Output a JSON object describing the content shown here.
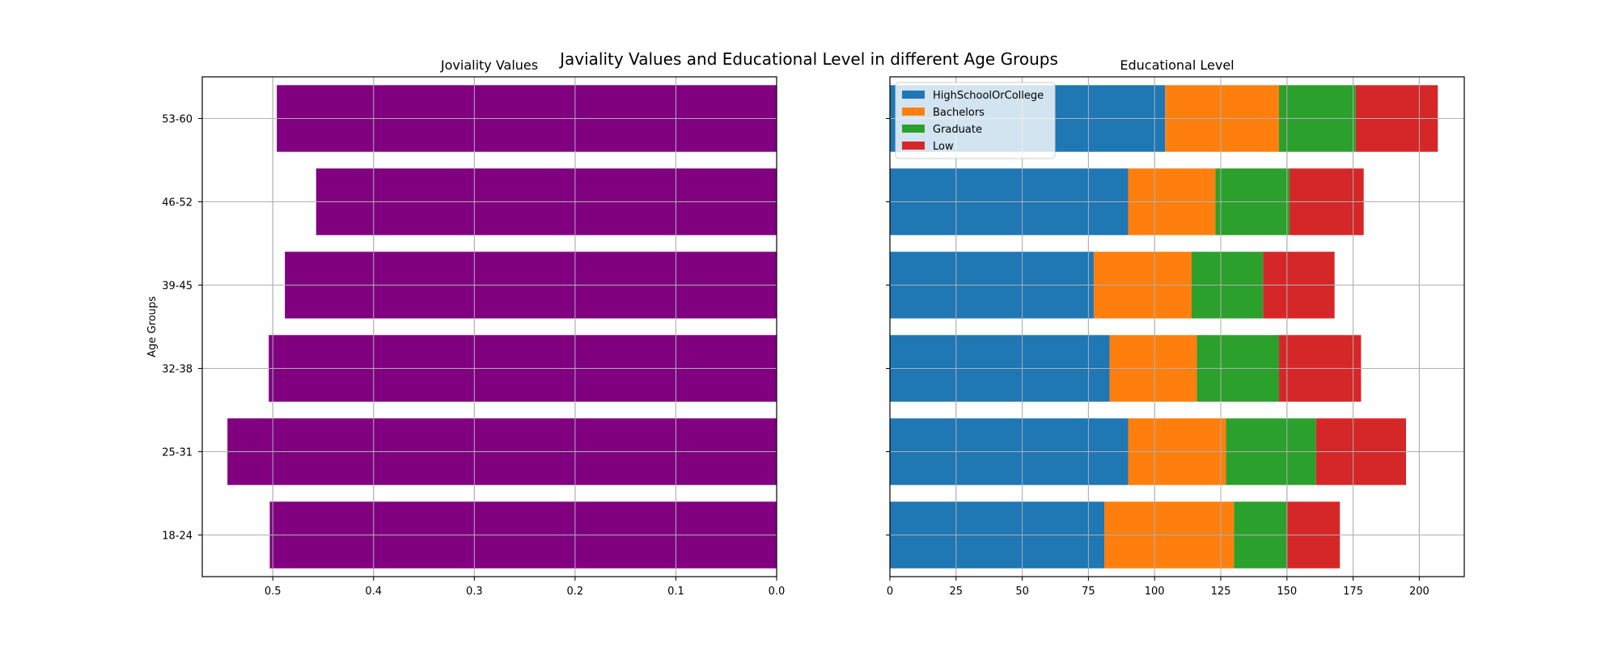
{
  "figure": {
    "title": "Javiality Values and Educational Level in different Age Groups"
  },
  "chart_data": [
    {
      "type": "bar",
      "orientation": "horizontal",
      "title": "Joviality Values",
      "xlabel": "",
      "ylabel": "Age Groups",
      "categories": [
        "18-24",
        "25-31",
        "32-38",
        "39-45",
        "46-52",
        "53-60"
      ],
      "values": [
        0.503,
        0.545,
        0.504,
        0.488,
        0.457,
        0.496
      ],
      "xlim": [
        0.57,
        0.0
      ],
      "x_inverted": true,
      "xticks": [
        "0.5",
        "0.4",
        "0.3",
        "0.2",
        "0.1",
        "0.0"
      ],
      "color": "#800080",
      "grid": true
    },
    {
      "type": "bar",
      "orientation": "horizontal",
      "stacked": true,
      "title": "Educational Level",
      "xlabel": "",
      "ylabel": "",
      "categories": [
        "18-24",
        "25-31",
        "32-38",
        "39-45",
        "46-52",
        "53-60"
      ],
      "xlim": [
        0,
        217
      ],
      "xticks": [
        "0",
        "25",
        "50",
        "75",
        "100",
        "125",
        "150",
        "175",
        "200"
      ],
      "grid": true,
      "legend_position": "top-left",
      "series": [
        {
          "name": "HighSchoolOrCollege",
          "color": "#1f77b4",
          "values": [
            81,
            90,
            83,
            77,
            90,
            104
          ]
        },
        {
          "name": "Bachelors",
          "color": "#ff7f0e",
          "values": [
            49,
            37,
            33,
            37,
            33,
            43
          ]
        },
        {
          "name": "Graduate",
          "color": "#2ca02c",
          "values": [
            20,
            34,
            31,
            27,
            28,
            29
          ]
        },
        {
          "name": "Low",
          "color": "#d62728",
          "values": [
            20,
            34,
            31,
            27,
            28,
            31
          ]
        }
      ]
    }
  ]
}
